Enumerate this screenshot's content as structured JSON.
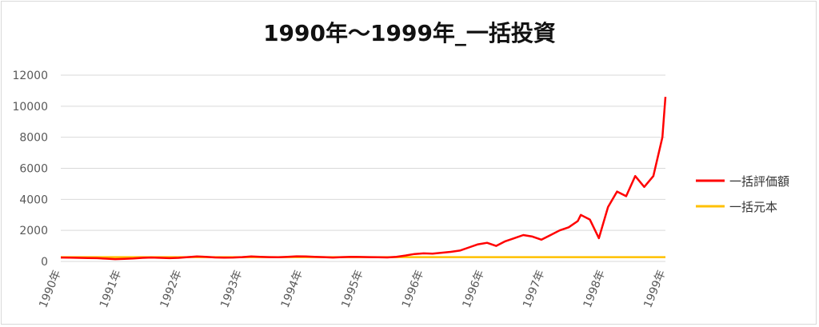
{
  "chart_data": {
    "type": "line",
    "title": "1990年～1999年_一括投資",
    "xlabel": "",
    "ylabel": "",
    "ylim": [
      0,
      12000
    ],
    "yticks": [
      0,
      2000,
      4000,
      6000,
      8000,
      10000,
      12000
    ],
    "xticks": [
      "1990年",
      "1991年",
      "1992年",
      "1993年",
      "1994年",
      "1995年",
      "1996年",
      "1996年",
      "1997年",
      "1998年",
      "1999年"
    ],
    "grid": "horizontal",
    "legend_position": "right",
    "colors": {
      "lump_sum_value": "#ff0000",
      "principal": "#ffc000"
    },
    "series": [
      {
        "name": "一括評価額",
        "color": "#ff0000",
        "x": [
          0.0,
          0.15,
          0.3,
          0.45,
          0.6,
          0.75,
          0.9,
          1.05,
          1.2,
          1.35,
          1.5,
          1.65,
          1.8,
          1.95,
          2.1,
          2.25,
          2.4,
          2.55,
          2.7,
          2.85,
          3.0,
          3.15,
          3.3,
          3.45,
          3.6,
          3.75,
          3.9,
          4.05,
          4.2,
          4.35,
          4.5,
          4.65,
          4.8,
          4.95,
          5.1,
          5.25,
          5.4,
          5.55,
          5.7,
          5.85,
          6.0,
          6.15,
          6.3,
          6.45,
          6.6,
          6.75,
          6.9,
          7.05,
          7.2,
          7.35,
          7.5,
          7.65,
          7.8,
          7.95,
          8.1,
          8.25,
          8.4,
          8.55,
          8.6,
          8.75,
          8.9,
          9.05,
          9.2,
          9.35,
          9.5,
          9.65,
          9.8,
          9.95,
          10.0
        ],
        "values": [
          250,
          240,
          230,
          220,
          210,
          180,
          150,
          170,
          190,
          230,
          250,
          230,
          210,
          230,
          280,
          320,
          300,
          260,
          240,
          250,
          280,
          320,
          300,
          280,
          270,
          300,
          330,
          320,
          300,
          280,
          250,
          280,
          300,
          290,
          280,
          270,
          260,
          300,
          380,
          480,
          520,
          500,
          560,
          620,
          700,
          900,
          1100,
          1200,
          1000,
          1300,
          1500,
          1700,
          1600,
          1400,
          1700,
          2000,
          2200,
          2600,
          3000,
          2700,
          1500,
          3500,
          4500,
          4200,
          5500,
          4800,
          5500,
          8000,
          10600
        ]
      },
      {
        "name": "一括元本",
        "color": "#ffc000",
        "x": [
          0,
          10
        ],
        "values": [
          280,
          280
        ]
      }
    ]
  }
}
